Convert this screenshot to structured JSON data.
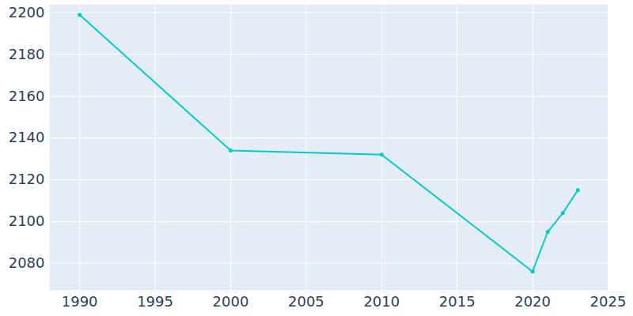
{
  "chart_data": {
    "type": "line",
    "x": [
      1990,
      2000,
      2010,
      2020,
      2021,
      2022,
      2023
    ],
    "values": [
      2199,
      2134,
      2132,
      2076,
      2095,
      2104,
      2115
    ],
    "color": "#00cccc",
    "marker": "circle",
    "xlim": [
      1988,
      2025
    ],
    "ylim": [
      2067,
      2204
    ],
    "xticks": [
      1990,
      1995,
      2000,
      2005,
      2010,
      2015,
      2020,
      2025
    ],
    "yticks": [
      2080,
      2100,
      2120,
      2140,
      2160,
      2180,
      2200
    ],
    "grid": true
  }
}
